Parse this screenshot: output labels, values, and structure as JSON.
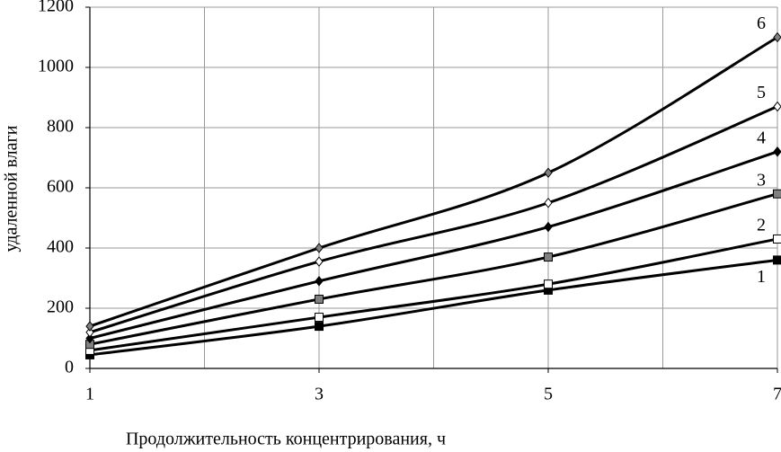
{
  "chart_data": {
    "type": "line",
    "x_label": "Продолжительность концентрирования, ч",
    "y_label": "удаленной влаги",
    "x": [
      1,
      3,
      5,
      7
    ],
    "xlim": [
      1,
      7
    ],
    "xticks": [
      1,
      3,
      5,
      7
    ],
    "x_grid_ticks": [
      1,
      2,
      3,
      4,
      5,
      6,
      7
    ],
    "ylim": [
      0,
      1200
    ],
    "yticks": [
      0,
      200,
      400,
      600,
      800,
      1000,
      1200
    ],
    "grid": true,
    "line_color": "#000000",
    "series": [
      {
        "name": "1",
        "color": "#000000",
        "marker": "square",
        "values": [
          45,
          140,
          260,
          360
        ]
      },
      {
        "name": "2",
        "color": "#ffffff",
        "marker": "square",
        "values": [
          60,
          170,
          280,
          430
        ]
      },
      {
        "name": "3",
        "color": "#808080",
        "marker": "square",
        "values": [
          80,
          230,
          370,
          580
        ]
      },
      {
        "name": "4",
        "color": "#000000",
        "marker": "diamond",
        "values": [
          100,
          290,
          470,
          720
        ]
      },
      {
        "name": "5",
        "color": "#ffffff",
        "marker": "diamond",
        "values": [
          120,
          355,
          550,
          870
        ]
      },
      {
        "name": "6",
        "color": "#808080",
        "marker": "diamond",
        "values": [
          140,
          400,
          650,
          1100
        ]
      }
    ]
  }
}
